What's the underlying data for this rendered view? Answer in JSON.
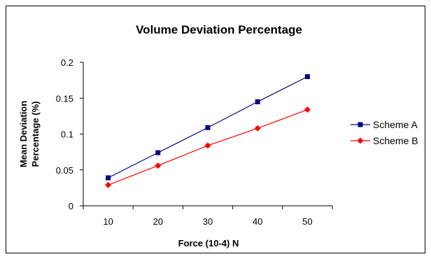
{
  "chart_data": {
    "type": "line",
    "title": "Volume Deviation Percentage",
    "xlabel": "Force (10-4) N",
    "ylabel_lines": [
      "Mean Deviation",
      "Percentage (%)"
    ],
    "x": [
      10,
      20,
      30,
      40,
      50
    ],
    "x_tick_labels": [
      "10",
      "20",
      "30",
      "40",
      "50"
    ],
    "ylim": [
      0,
      0.2
    ],
    "y_ticks": [
      0,
      0.05,
      0.1,
      0.15,
      0.2
    ],
    "y_tick_labels": [
      "0",
      "0.05",
      "0.1",
      "0.15",
      "0.2"
    ],
    "grid": false,
    "legend_position": "right",
    "series": [
      {
        "name": "Scheme A",
        "values": [
          0.039,
          0.074,
          0.109,
          0.145,
          0.18
        ],
        "color": "#000080",
        "marker": "square"
      },
      {
        "name": "Scheme B",
        "values": [
          0.029,
          0.056,
          0.084,
          0.108,
          0.134
        ],
        "color": "#ff0000",
        "marker": "diamond"
      }
    ]
  }
}
